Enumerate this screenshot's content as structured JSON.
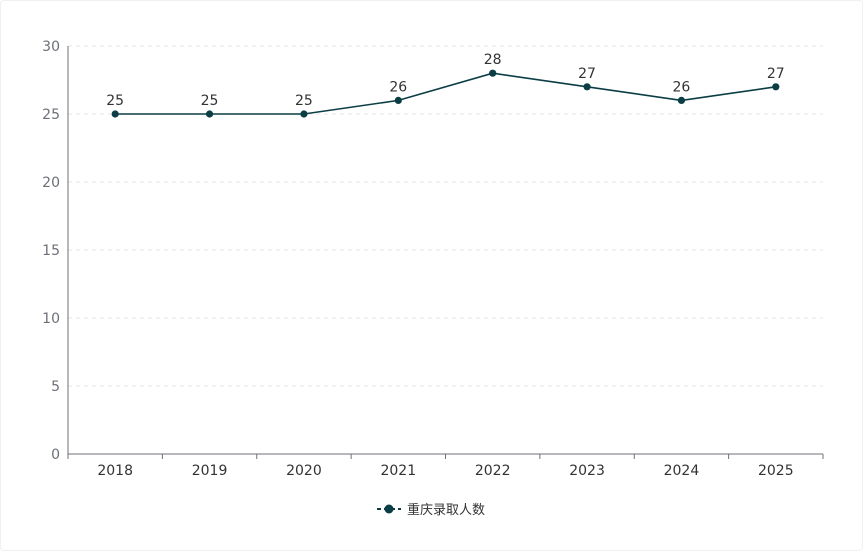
{
  "chart_data": {
    "type": "line",
    "categories": [
      "2018",
      "2019",
      "2020",
      "2021",
      "2022",
      "2023",
      "2024",
      "2025"
    ],
    "series": [
      {
        "name": "重庆录取人数",
        "values": [
          25,
          25,
          25,
          26,
          28,
          27,
          26,
          27
        ]
      }
    ],
    "ylim": [
      0,
      30
    ],
    "yticks": [
      0,
      5,
      10,
      15,
      20,
      25,
      30
    ],
    "grid": true,
    "legend_position": "bottom-center",
    "colors": {
      "line": "#0b3d45",
      "grid": "#e6e6e6",
      "axis": "#6e7079",
      "text": "#333333",
      "tick_text": "#6e7079"
    }
  }
}
